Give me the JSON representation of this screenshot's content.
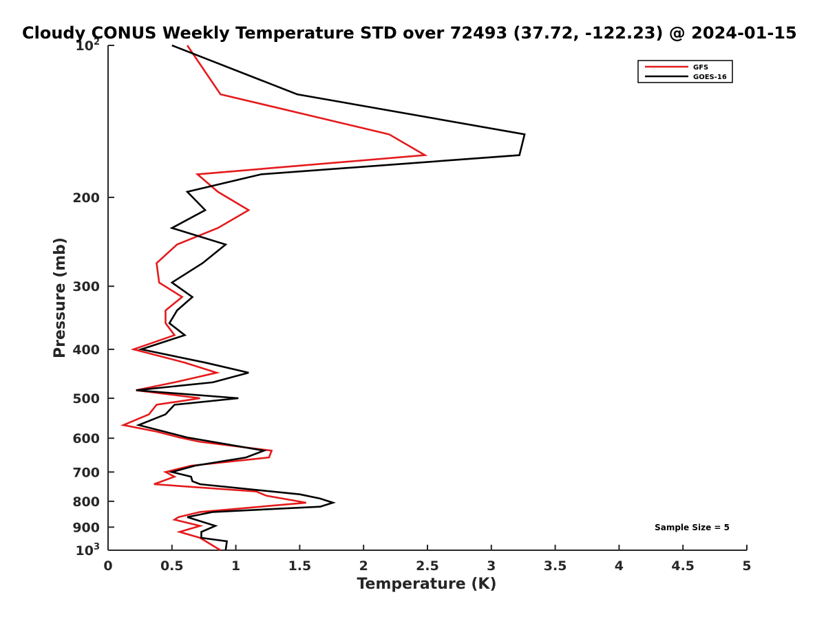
{
  "chart_data": {
    "type": "line",
    "title": "Cloudy CONUS Weekly Temperature STD over 72493 (37.72, -122.23) @ 2024-01-15",
    "xlabel": "Temperature (K)",
    "ylabel": "Pressure (mb)",
    "xlim": [
      0,
      5
    ],
    "ylim": [
      100,
      1000
    ],
    "yscale": "log",
    "y_reversed": true,
    "grid": false,
    "legend_position": "top-right",
    "x_ticks": [
      "0",
      "0.5",
      "1",
      "1.5",
      "2",
      "2.5",
      "3",
      "3.5",
      "4",
      "4.5",
      "5"
    ],
    "x_tick_values": [
      0,
      0.5,
      1,
      1.5,
      2,
      2.5,
      3,
      3.5,
      4,
      4.5,
      5
    ],
    "y_ticks": [
      {
        "value": 100,
        "base": "10",
        "exp": "2"
      },
      {
        "value": 200,
        "label": "200"
      },
      {
        "value": 300,
        "label": "300"
      },
      {
        "value": 400,
        "label": "400"
      },
      {
        "value": 500,
        "label": "500"
      },
      {
        "value": 600,
        "label": "600"
      },
      {
        "value": 700,
        "label": "700"
      },
      {
        "value": 800,
        "label": "800"
      },
      {
        "value": 900,
        "label": "900"
      },
      {
        "value": 1000,
        "base": "10",
        "exp": "3"
      }
    ],
    "series": [
      {
        "name": "GFS",
        "color": "#e41a1c",
        "points": [
          [
            0.62,
            100
          ],
          [
            0.88,
            125
          ],
          [
            2.2,
            150
          ],
          [
            2.48,
            165
          ],
          [
            0.7,
            180
          ],
          [
            0.86,
            195
          ],
          [
            1.1,
            212
          ],
          [
            0.86,
            230
          ],
          [
            0.54,
            248
          ],
          [
            0.38,
            270
          ],
          [
            0.4,
            295
          ],
          [
            0.58,
            315
          ],
          [
            0.45,
            335
          ],
          [
            0.45,
            355
          ],
          [
            0.52,
            375
          ],
          [
            0.2,
            400
          ],
          [
            0.6,
            425
          ],
          [
            0.85,
            445
          ],
          [
            0.52,
            465
          ],
          [
            0.22,
            482
          ],
          [
            0.72,
            500
          ],
          [
            0.38,
            515
          ],
          [
            0.32,
            538
          ],
          [
            0.12,
            565
          ],
          [
            0.38,
            582
          ],
          [
            0.56,
            598
          ],
          [
            0.72,
            610
          ],
          [
            1.28,
            635
          ],
          [
            1.26,
            655
          ],
          [
            0.65,
            680
          ],
          [
            0.45,
            700
          ],
          [
            0.52,
            715
          ],
          [
            0.36,
            740
          ],
          [
            1.16,
            765
          ],
          [
            1.24,
            780
          ],
          [
            1.55,
            805
          ],
          [
            0.72,
            840
          ],
          [
            0.55,
            860
          ],
          [
            0.52,
            870
          ],
          [
            0.72,
            895
          ],
          [
            0.56,
            920
          ],
          [
            0.72,
            945
          ],
          [
            0.88,
            1000
          ]
        ]
      },
      {
        "name": "GOES-16",
        "color": "#000000",
        "points": [
          [
            0.5,
            100
          ],
          [
            1.48,
            125
          ],
          [
            3.26,
            150
          ],
          [
            3.22,
            165
          ],
          [
            1.2,
            180
          ],
          [
            0.62,
            195
          ],
          [
            0.76,
            212
          ],
          [
            0.5,
            230
          ],
          [
            0.92,
            248
          ],
          [
            0.74,
            270
          ],
          [
            0.5,
            295
          ],
          [
            0.66,
            315
          ],
          [
            0.54,
            335
          ],
          [
            0.48,
            355
          ],
          [
            0.6,
            375
          ],
          [
            0.26,
            400
          ],
          [
            0.76,
            425
          ],
          [
            1.1,
            445
          ],
          [
            0.82,
            465
          ],
          [
            0.22,
            482
          ],
          [
            1.02,
            500
          ],
          [
            0.52,
            515
          ],
          [
            0.45,
            538
          ],
          [
            0.24,
            565
          ],
          [
            0.62,
            598
          ],
          [
            1.22,
            635
          ],
          [
            1.08,
            655
          ],
          [
            0.68,
            680
          ],
          [
            0.5,
            700
          ],
          [
            0.65,
            715
          ],
          [
            0.66,
            730
          ],
          [
            0.72,
            740
          ],
          [
            1.5,
            775
          ],
          [
            1.66,
            790
          ],
          [
            1.76,
            805
          ],
          [
            1.66,
            820
          ],
          [
            0.82,
            840
          ],
          [
            0.62,
            860
          ],
          [
            0.84,
            895
          ],
          [
            0.73,
            920
          ],
          [
            0.73,
            945
          ],
          [
            0.93,
            960
          ],
          [
            0.92,
            1000
          ]
        ]
      }
    ],
    "annotation": "Sample Size = 5"
  }
}
